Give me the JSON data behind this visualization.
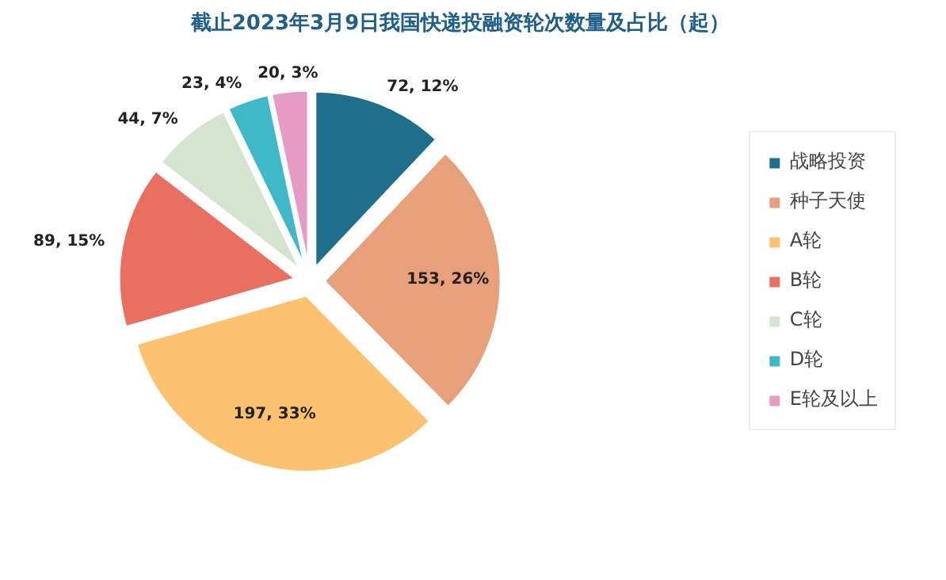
{
  "chart_data": {
    "type": "pie",
    "title": "截止2023年3月9日我国快递投融资轮次数量及占比（起）",
    "categories": [
      "战略投资",
      "种子天使",
      "A轮",
      "B轮",
      "C轮",
      "D轮",
      "E轮及以上"
    ],
    "values": [
      72,
      153,
      197,
      89,
      44,
      23,
      20
    ],
    "colors": [
      "#1f6e8c",
      "#e8a07a",
      "#fdc26f",
      "#e97060",
      "#d5e4cf",
      "#3fb8c8",
      "#e59bc4"
    ],
    "value_labels": [
      "72, 12%",
      "153, 26%",
      "197, 33%",
      "89, 15%",
      "44, 7%",
      "23, 4%",
      "20, 3%"
    ],
    "legend": "right"
  }
}
